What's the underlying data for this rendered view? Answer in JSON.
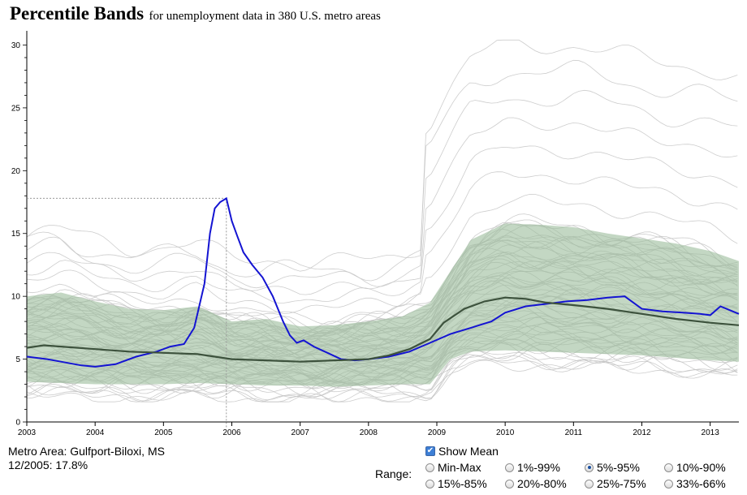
{
  "header": {
    "title": "Percentile Bands",
    "subtitle": "for unemployment data in 380 U.S. metro areas"
  },
  "info": {
    "metro_label": "Metro Area: Gulfport-Biloxi, MS",
    "value_label": "12/2005: 17.8%"
  },
  "controls": {
    "show_mean_label": "Show Mean",
    "show_mean_checked": true,
    "range_label": "Range:",
    "options": [
      "Min-Max",
      "1%-99%",
      "5%-95%",
      "10%-90%",
      "15%-85%",
      "20%-80%",
      "25%-75%",
      "33%-66%"
    ],
    "selected": "5%-95%"
  },
  "colors": {
    "band": "#9bbd9b",
    "mean": "#3d523d",
    "highlight": "#1414d2",
    "metro_lines": "#c4c4c4"
  },
  "chart_data": {
    "type": "line",
    "title": "",
    "xlabel": "",
    "ylabel": "",
    "xlim": [
      2003.0,
      2013.42
    ],
    "ylim": [
      0,
      31
    ],
    "x_ticks": [
      "2003",
      "2004",
      "2005",
      "2006",
      "2007",
      "2008",
      "2009",
      "2010",
      "2011",
      "2012",
      "2013"
    ],
    "y_ticks": [
      "0",
      "5",
      "10",
      "15",
      "20",
      "25",
      "30"
    ],
    "band": {
      "name": "5%-95%",
      "x": [
        2003.0,
        2003.5,
        2004.0,
        2004.5,
        2005.0,
        2005.5,
        2006.0,
        2006.5,
        2007.0,
        2007.5,
        2008.0,
        2008.5,
        2008.9,
        2009.2,
        2009.5,
        2010.0,
        2010.5,
        2011.0,
        2011.5,
        2012.0,
        2012.5,
        2013.0,
        2013.42
      ],
      "upper": [
        10.0,
        10.3,
        9.6,
        9.0,
        8.9,
        9.2,
        8.0,
        8.2,
        7.6,
        7.7,
        8.0,
        8.4,
        9.5,
        12.0,
        14.5,
        15.8,
        15.7,
        15.5,
        15.0,
        14.6,
        14.2,
        13.6,
        12.8
      ],
      "lower": [
        3.2,
        3.1,
        3.0,
        3.0,
        3.0,
        3.1,
        3.0,
        2.9,
        2.9,
        2.8,
        2.9,
        3.0,
        3.0,
        5.0,
        5.6,
        5.7,
        5.6,
        5.5,
        5.4,
        5.3,
        5.1,
        4.9,
        4.8
      ]
    },
    "series": [
      {
        "name": "Mean",
        "x": [
          2003.0,
          2003.25,
          2003.5,
          2004.0,
          2004.5,
          2005.0,
          2005.5,
          2006.0,
          2006.5,
          2007.0,
          2007.5,
          2008.0,
          2008.3,
          2008.6,
          2008.9,
          2009.1,
          2009.4,
          2009.7,
          2010.0,
          2010.3,
          2010.6,
          2011.0,
          2011.5,
          2012.0,
          2012.5,
          2013.0,
          2013.42
        ],
        "y": [
          5.9,
          6.1,
          6.0,
          5.8,
          5.6,
          5.5,
          5.4,
          5.0,
          4.9,
          4.8,
          4.9,
          5.0,
          5.3,
          5.8,
          6.6,
          7.9,
          9.0,
          9.6,
          9.9,
          9.8,
          9.5,
          9.3,
          9.0,
          8.6,
          8.2,
          7.9,
          7.7
        ]
      },
      {
        "name": "Gulfport-Biloxi, MS",
        "x": [
          2003.0,
          2003.3,
          2003.5,
          2003.8,
          2004.0,
          2004.3,
          2004.6,
          2004.9,
          2005.1,
          2005.3,
          2005.45,
          2005.6,
          2005.68,
          2005.75,
          2005.83,
          2005.92,
          2006.0,
          2006.08,
          2006.17,
          2006.3,
          2006.45,
          2006.6,
          2006.75,
          2006.85,
          2006.95,
          2007.05,
          2007.2,
          2007.4,
          2007.6,
          2007.8,
          2008.0,
          2008.3,
          2008.6,
          2008.9,
          2009.2,
          2009.5,
          2009.8,
          2010.0,
          2010.3,
          2010.6,
          2010.9,
          2011.2,
          2011.5,
          2011.75,
          2012.0,
          2012.3,
          2012.6,
          2012.85,
          2013.0,
          2013.15,
          2013.42
        ],
        "y": [
          5.2,
          5.0,
          4.8,
          4.5,
          4.4,
          4.6,
          5.2,
          5.6,
          6.0,
          6.2,
          7.5,
          11.0,
          15.0,
          17.0,
          17.5,
          17.8,
          16.0,
          14.8,
          13.5,
          12.5,
          11.5,
          10.0,
          8.0,
          6.9,
          6.3,
          6.5,
          6.0,
          5.5,
          5.0,
          4.9,
          5.0,
          5.2,
          5.6,
          6.3,
          7.0,
          7.5,
          8.0,
          8.7,
          9.2,
          9.4,
          9.6,
          9.7,
          9.9,
          10.0,
          9.0,
          8.8,
          8.7,
          8.6,
          8.5,
          9.2,
          8.6
        ]
      }
    ],
    "cursor": {
      "x": 2005.92,
      "y": 17.8
    }
  }
}
